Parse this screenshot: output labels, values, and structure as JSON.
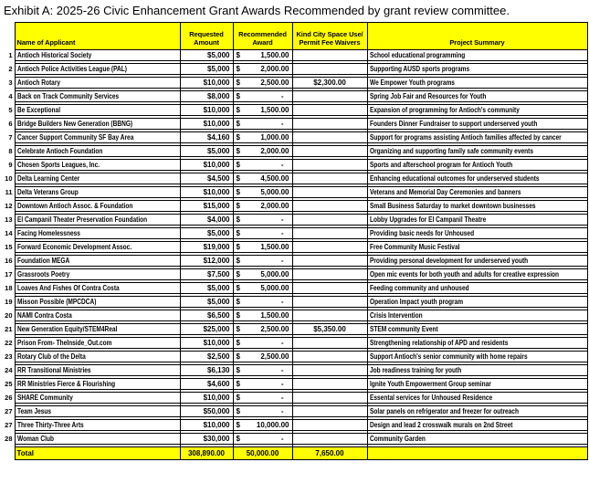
{
  "title": "Exhibit A: 2025-26 Civic Enhancement Grant Awards Recommended by grant review committee.",
  "colors": {
    "header_bg": "#FFFF00",
    "border": "#000000",
    "text": "#000000"
  },
  "table": {
    "currency_symbol": "$",
    "headers": {
      "name": "Name of Applicant",
      "requested": "Requested Amount",
      "recommended": "Recommended Award",
      "kind_city": "Kind City Space Use/ Permit Fee Waivers",
      "summary": "Project Summary"
    },
    "rows": [
      {
        "num": "1",
        "name": "Antioch Historical Society",
        "requested": "$5,000",
        "award": "1,500.00",
        "kind_city": "",
        "summary": "School educational programming"
      },
      {
        "num": "2",
        "name": "Antioch Police Activities League (PAL)",
        "requested": "$5,000",
        "award": "2,000.00",
        "kind_city": "",
        "summary": "Supporting AUSD sports programs"
      },
      {
        "num": "3",
        "name": "Antioch Rotary",
        "requested": "$10,000",
        "award": "2,500.00",
        "kind_city": "$2,300.00",
        "summary": "We Empower Youth programs"
      },
      {
        "num": "4",
        "name": "Back on Track Community Services",
        "requested": "$8,000",
        "award": "-",
        "kind_city": "",
        "summary": "Spring Job Fair and Resources for Youth"
      },
      {
        "num": "5",
        "name": "Be Exceptional",
        "requested": "$10,000",
        "award": "1,500.00",
        "kind_city": "",
        "summary": "Expansion of programming for Antioch's community"
      },
      {
        "num": "6",
        "name": "Bridge Builders New Generation (BBNG)",
        "requested": "$10,000",
        "award": "-",
        "kind_city": "",
        "summary": "Founders Dinner Fundraiser to support underserved youth"
      },
      {
        "num": "7",
        "name": "Cancer Support Community SF Bay Area",
        "requested": "$4,160",
        "award": "1,000.00",
        "kind_city": "",
        "summary": "Support for programs assisting Antioch families affected by cancer"
      },
      {
        "num": "8",
        "name": "Celebrate Antioch Foundation",
        "requested": "$5,000",
        "award": "2,000.00",
        "kind_city": "",
        "summary": "Organizing and supporting family safe community events"
      },
      {
        "num": "9",
        "name": "Chosen Sports Leagues, Inc.",
        "requested": "$10,000",
        "award": "-",
        "kind_city": "",
        "summary": "Sports and afterschool program for Antioch Youth"
      },
      {
        "num": "10",
        "name": "Delta Learning Center",
        "requested": "$4,500",
        "award": "4,500.00",
        "kind_city": "",
        "summary": "Enhancing educational outcomes for underserved students"
      },
      {
        "num": "11",
        "name": "Delta Veterans Group",
        "requested": "$10,000",
        "award": "5,000.00",
        "kind_city": "",
        "summary": "Veterans and Memorial Day Ceremonies and banners"
      },
      {
        "num": "12",
        "name": "Downtown Antioch Assoc. & Foundation",
        "requested": "$15,000",
        "award": "2,000.00",
        "kind_city": "",
        "summary": "Small Business Saturday to market downtown businesses"
      },
      {
        "num": "13",
        "name": "El Campanil Theater Preservation Foundation",
        "requested": "$4,000",
        "award": "-",
        "kind_city": "",
        "summary": "Lobby Upgrades for El Campanil Theatre"
      },
      {
        "num": "14",
        "name": "Facing Homelessness",
        "requested": "$5,000",
        "award": "-",
        "kind_city": "",
        "summary": "Providing basic needs for Unhoused"
      },
      {
        "num": "15",
        "name": "Forward Economic Development Assoc.",
        "requested": "$19,000",
        "award": "1,500.00",
        "kind_city": "",
        "summary": "Free Community Music Festival"
      },
      {
        "num": "16",
        "name": "Foundation MEGA",
        "requested": "$12,000",
        "award": "-",
        "kind_city": "",
        "summary": "Providing personal development for underserved youth"
      },
      {
        "num": "17",
        "name": "Grassroots Poetry",
        "requested": "$7,500",
        "award": "5,000.00",
        "kind_city": "",
        "summary": "Open mic events for both youth and adults for creative expression"
      },
      {
        "num": "18",
        "name": "Loaves And Fishes Of Contra Costa",
        "requested": "$5,000",
        "award": "5,000.00",
        "kind_city": "",
        "summary": "Feeding community and unhoused"
      },
      {
        "num": "19",
        "name": "Misson Possible (MPCDCA)",
        "requested": "$5,000",
        "award": "-",
        "kind_city": "",
        "summary": "Operation Impact youth program"
      },
      {
        "num": "20",
        "name": "NAMI Contra Costa",
        "requested": "$6,500",
        "award": "1,500.00",
        "kind_city": "",
        "summary": "Crisis Intervention"
      },
      {
        "num": "21",
        "name": "New Generation Equity/STEM4Real",
        "requested": "$25,000",
        "award": "2,500.00",
        "kind_city": "$5,350.00",
        "summary": "STEM community Event"
      },
      {
        "num": "22",
        "name": "Prison From- TheInside_Out.com",
        "requested": "$10,000",
        "award": "-",
        "kind_city": "",
        "summary": "Strengthening relationship of APD and residents"
      },
      {
        "num": "23",
        "name": "Rotary Club of the Delta",
        "requested": "$2,500",
        "award": "2,500.00",
        "kind_city": "",
        "summary": "Support Antioch's senior community with home repairs"
      },
      {
        "num": "24",
        "name": "RR Transitional Ministries",
        "requested": "$6,130",
        "award": "-",
        "kind_city": "",
        "summary": "Job readiness training for youth"
      },
      {
        "num": "25",
        "name": "RR Ministries Fierce & Flourishing",
        "requested": "$4,600",
        "award": "-",
        "kind_city": "",
        "summary": "Ignite Youth Empowerment Group seminar"
      },
      {
        "num": "26",
        "name": "SHARE Community",
        "requested": "$10,000",
        "award": "-",
        "kind_city": "",
        "summary": "Essental services for Unhoused Residence"
      },
      {
        "num": "27",
        "name": "Team Jesus",
        "requested": "$50,000",
        "award": "-",
        "kind_city": "",
        "summary": "Solar panels on refrigerator and freezer for outreach"
      },
      {
        "num": "27",
        "name": "Three Thirty-Three Arts",
        "requested": "$10,000",
        "award": "10,000.00",
        "kind_city": "",
        "summary": "Design and lead 2 crosswalk murals on 2nd Street"
      },
      {
        "num": "28",
        "name": "Woman Club",
        "requested": "$30,000",
        "award": "-",
        "kind_city": "",
        "summary": "Community Garden"
      }
    ],
    "total": {
      "label": "Total",
      "requested": "308,890.00",
      "award": "50,000.00",
      "kind_city": "7,650.00",
      "summary": ""
    }
  }
}
